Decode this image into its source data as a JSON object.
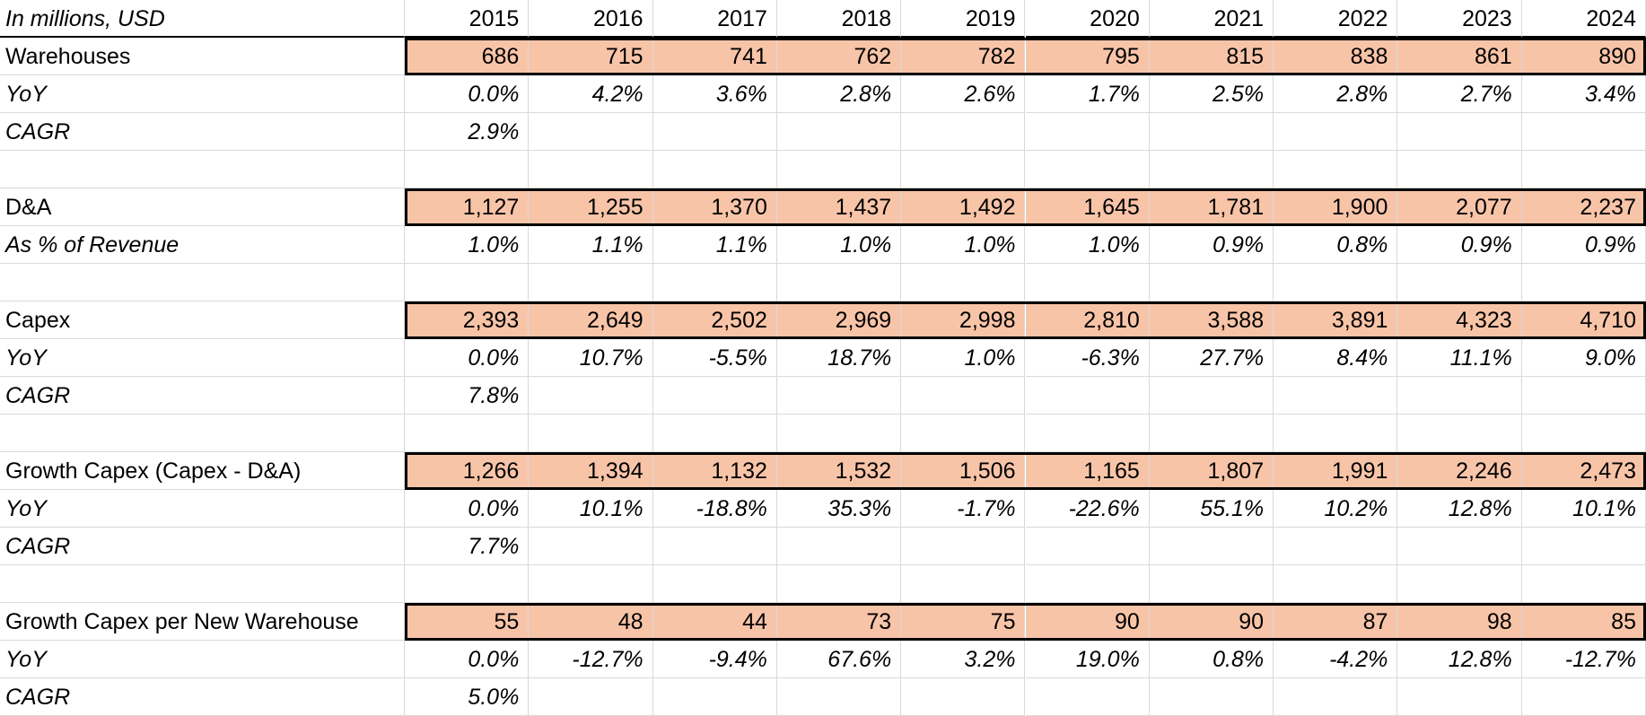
{
  "header": {
    "label": "In millions, USD",
    "years": [
      "2015",
      "2016",
      "2017",
      "2018",
      "2019",
      "2020",
      "2021",
      "2022",
      "2023",
      "2024"
    ]
  },
  "rows": [
    {
      "label": "Warehouses",
      "values": [
        "686",
        "715",
        "741",
        "762",
        "782",
        "795",
        "815",
        "838",
        "861",
        "890"
      ]
    },
    {
      "label": "YoY",
      "values": [
        "0.0%",
        "4.2%",
        "3.6%",
        "2.8%",
        "2.6%",
        "1.7%",
        "2.5%",
        "2.8%",
        "2.7%",
        "3.4%"
      ]
    },
    {
      "label": "CAGR",
      "values": [
        "2.9%",
        "",
        "",
        "",
        "",
        "",
        "",
        "",
        "",
        ""
      ]
    },
    {
      "label": "",
      "values": [
        "",
        "",
        "",
        "",
        "",
        "",
        "",
        "",
        "",
        ""
      ]
    },
    {
      "label": "D&A",
      "values": [
        "1,127",
        "1,255",
        "1,370",
        "1,437",
        "1,492",
        "1,645",
        "1,781",
        "1,900",
        "2,077",
        "2,237"
      ]
    },
    {
      "label": "As % of Revenue",
      "values": [
        "1.0%",
        "1.1%",
        "1.1%",
        "1.0%",
        "1.0%",
        "1.0%",
        "0.9%",
        "0.8%",
        "0.9%",
        "0.9%"
      ]
    },
    {
      "label": "",
      "values": [
        "",
        "",
        "",
        "",
        "",
        "",
        "",
        "",
        "",
        ""
      ]
    },
    {
      "label": "Capex",
      "values": [
        "2,393",
        "2,649",
        "2,502",
        "2,969",
        "2,998",
        "2,810",
        "3,588",
        "3,891",
        "4,323",
        "4,710"
      ]
    },
    {
      "label": "YoY",
      "values": [
        "0.0%",
        "10.7%",
        "-5.5%",
        "18.7%",
        "1.0%",
        "-6.3%",
        "27.7%",
        "8.4%",
        "11.1%",
        "9.0%"
      ]
    },
    {
      "label": "CAGR",
      "values": [
        "7.8%",
        "",
        "",
        "",
        "",
        "",
        "",
        "",
        "",
        ""
      ]
    },
    {
      "label": "",
      "values": [
        "",
        "",
        "",
        "",
        "",
        "",
        "",
        "",
        "",
        ""
      ]
    },
    {
      "label": "Growth Capex (Capex - D&A)",
      "values": [
        "1,266",
        "1,394",
        "1,132",
        "1,532",
        "1,506",
        "1,165",
        "1,807",
        "1,991",
        "2,246",
        "2,473"
      ]
    },
    {
      "label": "YoY",
      "values": [
        "0.0%",
        "10.1%",
        "-18.8%",
        "35.3%",
        "-1.7%",
        "-22.6%",
        "55.1%",
        "10.2%",
        "12.8%",
        "10.1%"
      ]
    },
    {
      "label": "CAGR",
      "values": [
        "7.7%",
        "",
        "",
        "",
        "",
        "",
        "",
        "",
        "",
        ""
      ]
    },
    {
      "label": "",
      "values": [
        "",
        "",
        "",
        "",
        "",
        "",
        "",
        "",
        "",
        ""
      ]
    },
    {
      "label": "Growth Capex per New Warehouse",
      "values": [
        "55",
        "48",
        "44",
        "73",
        "75",
        "90",
        "90",
        "87",
        "98",
        "85"
      ]
    },
    {
      "label": "YoY",
      "values": [
        "0.0%",
        "-12.7%",
        "-9.4%",
        "67.6%",
        "3.2%",
        "19.0%",
        "0.8%",
        "-4.2%",
        "12.8%",
        "-12.7%"
      ]
    },
    {
      "label": "CAGR",
      "values": [
        "5.0%",
        "",
        "",
        "",
        "",
        "",
        "",
        "",
        "",
        ""
      ]
    }
  ],
  "colors": {
    "highlight_fill": "#f8c4a8",
    "highlight_border": "#000000",
    "grid": "#d9d9d9"
  }
}
